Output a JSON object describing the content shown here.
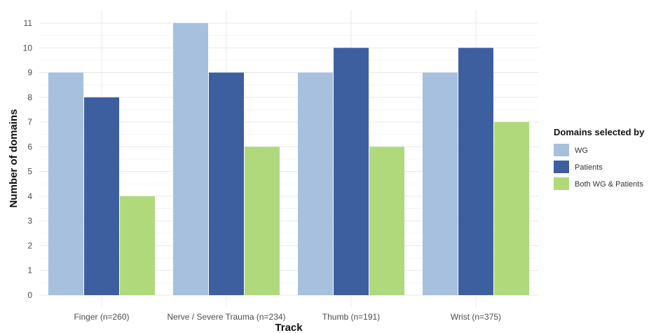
{
  "chart_data": {
    "type": "bar",
    "title": "",
    "xlabel": "Track",
    "ylabel": "Number of domains",
    "categories": [
      "Finger (n=260)",
      "Nerve / Severe Trauma (n=234)",
      "Thumb (n=191)",
      "Wrist (n=375)"
    ],
    "series": [
      {
        "name": "WG",
        "values": [
          9,
          11,
          9,
          9
        ],
        "color": "#a6c0dd"
      },
      {
        "name": "Patients",
        "values": [
          8,
          9,
          10,
          10
        ],
        "color": "#3d5fa0"
      },
      {
        "name": "Both WG & Patients",
        "values": [
          4,
          6,
          6,
          7
        ],
        "color": "#b0d97c"
      }
    ],
    "ylim": [
      0,
      11
    ],
    "yticks": [
      0,
      1,
      2,
      3,
      4,
      5,
      6,
      7,
      8,
      9,
      10,
      11
    ],
    "grid": true,
    "legend": {
      "title": "Domains selected by",
      "position": "right"
    }
  }
}
